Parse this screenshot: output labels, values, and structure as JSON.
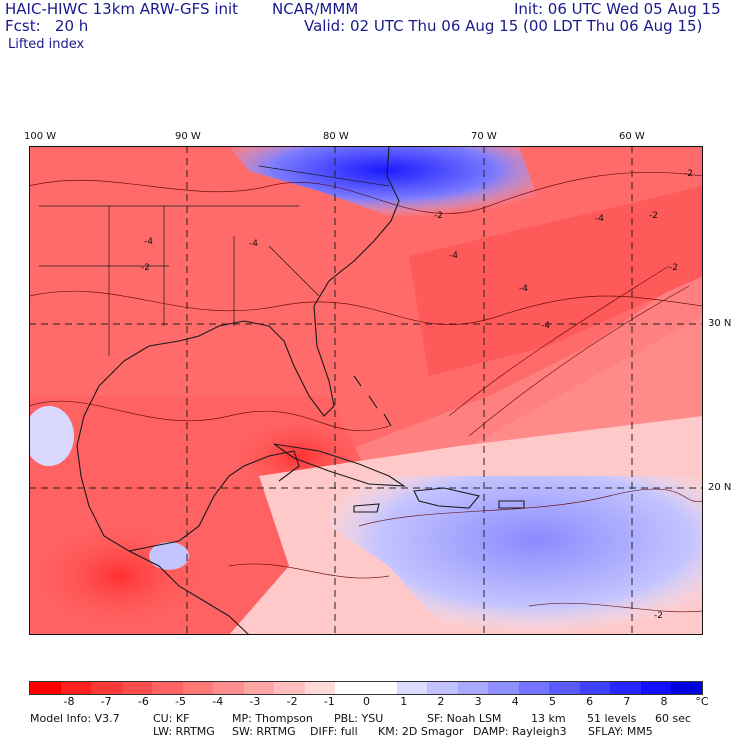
{
  "header": {
    "model_title": "HAIC-HIWC 13km ARW-GFS init",
    "org": "NCAR/MMM",
    "init": "Init: 06 UTC Wed 05 Aug 15",
    "fcst": "Fcst:   20 h",
    "valid": "Valid: 02 UTC Thu 06 Aug 15 (00 LDT Thu 06 Aug 15)",
    "field": "Lifted index"
  },
  "map": {
    "lon_labels": [
      "100 W",
      "90 W",
      "80 W",
      "70 W",
      "60 W"
    ],
    "lat_labels": [
      "30 N",
      "20 N"
    ],
    "contour_labels": [
      "-4",
      "-4",
      "-4",
      "-4",
      "-4",
      "-4",
      "-2",
      "-2",
      "-2",
      "-2",
      "-2",
      "-2"
    ]
  },
  "colorbar": {
    "labels": [
      "-8",
      "-7",
      "-6",
      "-5",
      "-4",
      "-3",
      "-2",
      "-1",
      "0",
      "1",
      "2",
      "3",
      "4",
      "5",
      "6",
      "7",
      "8"
    ],
    "unit": "°C",
    "colors": [
      "#ff0000",
      "#ff2020",
      "#ff3838",
      "#ff4d4d",
      "#ff6262",
      "#ff7878",
      "#ff8e8e",
      "#ffa6a6",
      "#ffbebe",
      "#ffd8d8",
      "#ffffff",
      "#ffffff",
      "#dcdcff",
      "#c2c2ff",
      "#a8a8ff",
      "#8e8eff",
      "#7474ff",
      "#5a5aff",
      "#4040ff",
      "#2626ff",
      "#1010ff",
      "#0000e0"
    ]
  },
  "model_info": {
    "line1": [
      "Model Info: V3.7",
      "CU: KF",
      "MP: Thompson",
      "PBL: YSU",
      "SF: Noah LSM",
      "13 km",
      "51 levels",
      "60 sec"
    ],
    "line2": [
      "LW: RRTMG",
      "SW: RRTMG",
      "DIFF: full",
      "KM: 2D Smagor",
      "DAMP: Rayleigh3",
      "SFLAY: MM5"
    ]
  }
}
